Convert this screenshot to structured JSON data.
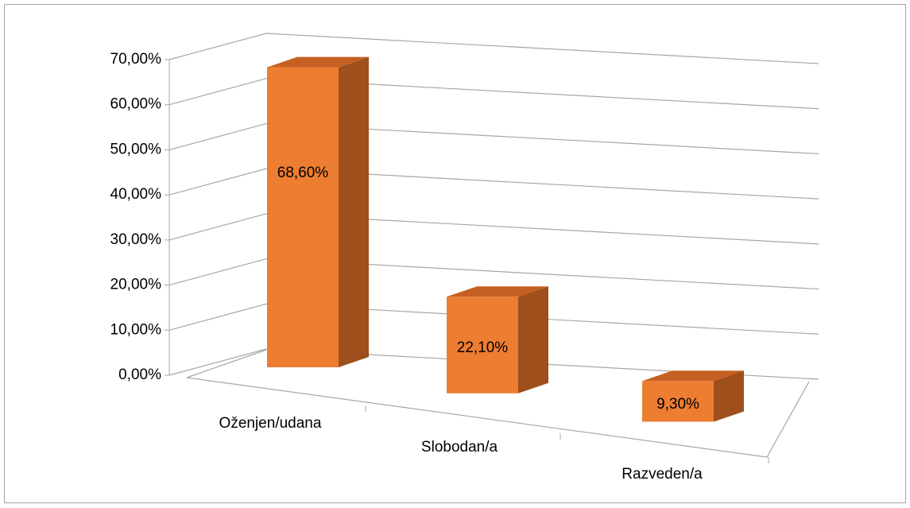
{
  "chart_data": {
    "type": "bar3d",
    "categories": [
      "Oženjen/udana",
      "Slobodan/a",
      "Razveden/a"
    ],
    "values": [
      68.6,
      22.1,
      9.3
    ],
    "value_labels": [
      "68,60%",
      "22,10%",
      "9,30%"
    ],
    "color": "#ed7d31",
    "ylim": [
      0,
      70
    ],
    "yticks": [
      {
        "value": 0,
        "label": "0,00%"
      },
      {
        "value": 10,
        "label": "10,00%"
      },
      {
        "value": 20,
        "label": "20,00%"
      },
      {
        "value": 30,
        "label": "30,00%"
      },
      {
        "value": 40,
        "label": "40,00%"
      },
      {
        "value": 50,
        "label": "50,00%"
      },
      {
        "value": 60,
        "label": "60,00%"
      },
      {
        "value": 70,
        "label": "70,00%"
      }
    ],
    "grid": true
  }
}
